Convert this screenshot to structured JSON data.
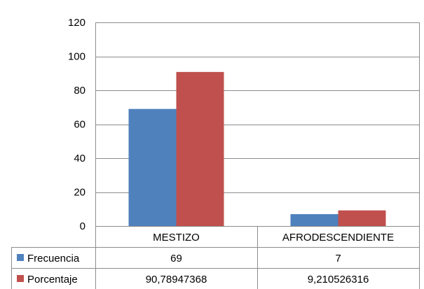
{
  "chart_data": {
    "type": "bar",
    "categories": [
      "MESTIZO",
      "AFRODESCENDIENTE"
    ],
    "series": [
      {
        "name": "Frecuencia",
        "color": "#4F81BD",
        "values": [
          69,
          7
        ],
        "table_values": [
          "69",
          "7"
        ]
      },
      {
        "name": "Porcentaje",
        "color": "#C0504D",
        "values": [
          90.78947368,
          9.210526316
        ],
        "table_values": [
          "90,78947368",
          "9,210526316"
        ]
      }
    ],
    "ylim": [
      0,
      120
    ],
    "yticks": [
      0,
      20,
      40,
      60,
      80,
      100,
      120
    ],
    "grid": true,
    "legend": "data-table"
  }
}
